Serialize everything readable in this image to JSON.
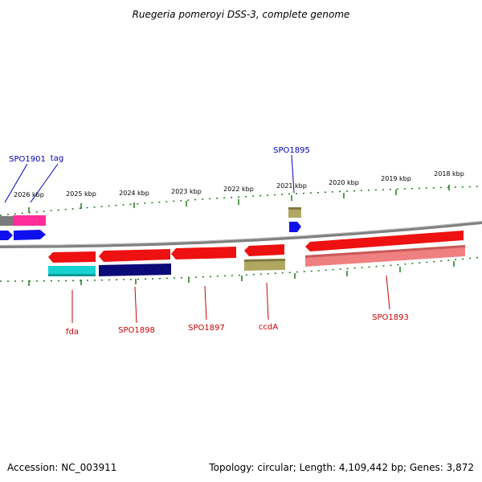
{
  "title": "Ruegeria pomeroyi DSS-3, complete genome",
  "footer": {
    "accession": "Accession: NC_003911",
    "summary": "Topology: circular; Length: 4,109,442 bp; Genes: 3,872"
  },
  "scale_ticks": [
    "2026 kbp",
    "2025 kbp",
    "2024 kbp",
    "2023 kbp",
    "2022 kbp",
    "2021 kbp",
    "2020 kbp",
    "2019 kbp",
    "2018 kbp"
  ],
  "labels_top": [
    "SPO1901",
    "tag",
    "SPO1895"
  ],
  "labels_bottom": [
    "fda",
    "SPO1898",
    "SPO1897",
    "ccdA",
    "SPO1893"
  ],
  "colors": {
    "backbone": "#808080",
    "tick": "#1a7a1a",
    "label_top": "#0000b8",
    "label_bottom": "#cc0000",
    "gene_red": "#ee1111",
    "gene_pink": "#ff2d9a",
    "gene_blue": "#1010ee",
    "gene_cyan": "#18d2d2",
    "gene_navy": "#0a0a78",
    "gene_olive": "#b0a860",
    "gene_lightred": "#f08080",
    "gene_gray": "#7a7a7a"
  }
}
